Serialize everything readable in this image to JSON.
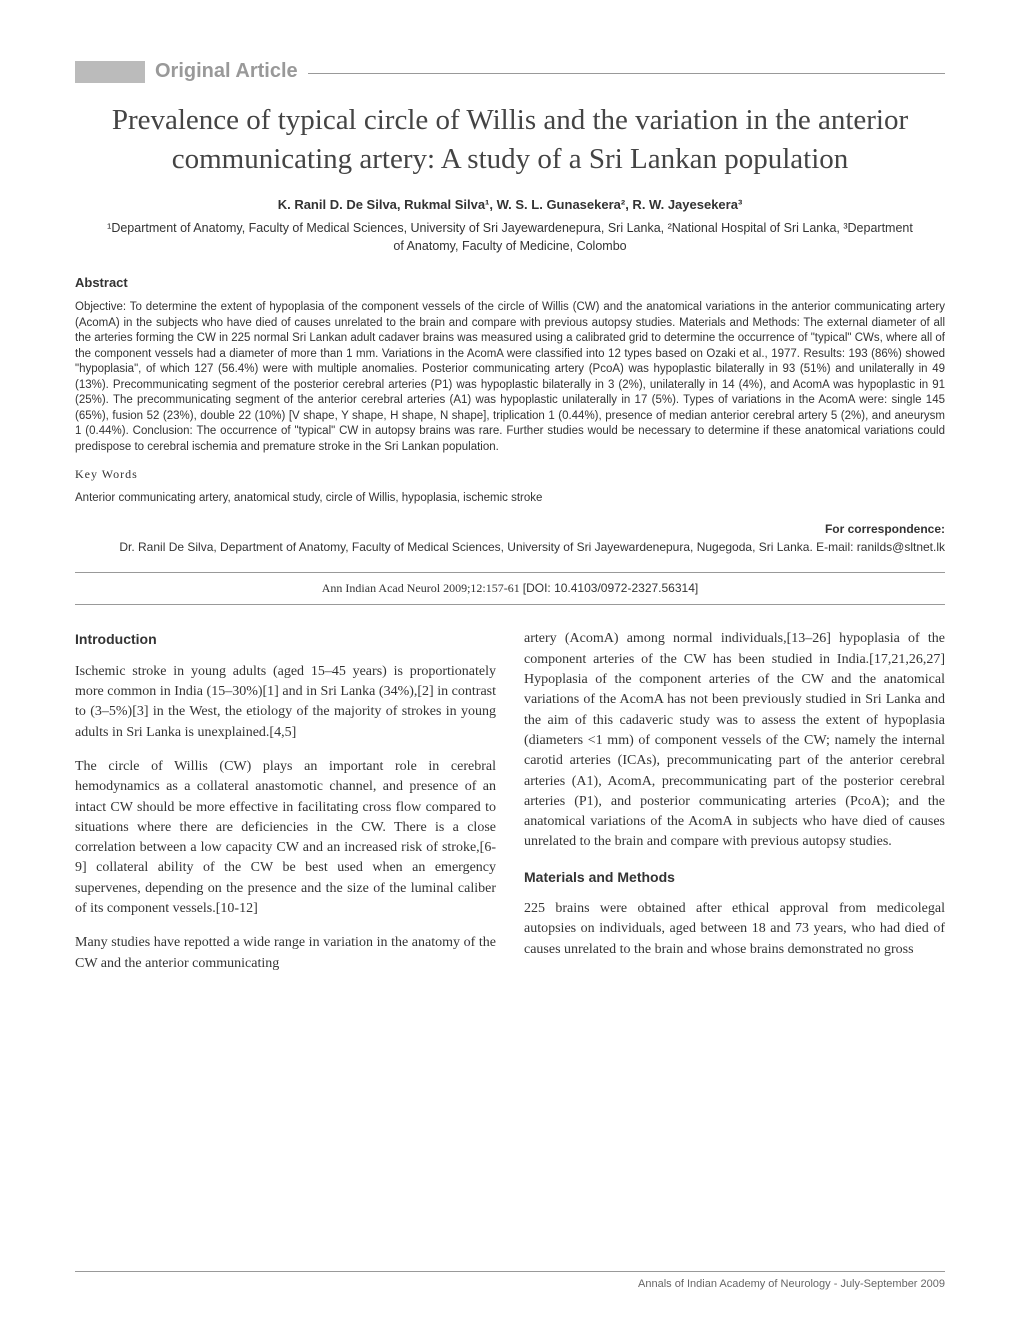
{
  "article_type": "Original Article",
  "title": "Prevalence of typical circle of Willis and the variation in the anterior communicating artery: A study of a Sri Lankan population",
  "authors": "K. Ranil D. De Silva, Rukmal Silva¹, W. S. L. Gunasekera², R. W. Jayesekera³",
  "affiliations": "¹Department of Anatomy, Faculty of Medical Sciences, University of Sri Jayewardenepura, Sri Lanka, ²National Hospital of Sri Lanka, ³Department of Anatomy, Faculty of Medicine, Colombo",
  "abstract_heading": "Abstract",
  "abstract_text": "Objective: To determine the extent of hypoplasia of the component vessels of the circle of Willis (CW) and the anatomical variations in the anterior communicating artery (AcomA) in the subjects who have died of causes unrelated to the brain and compare with previous autopsy studies. Materials and Methods: The external diameter of all the arteries forming the CW in 225 normal Sri Lankan adult cadaver brains was measured using a calibrated grid to determine the occurrence of \"typical\" CWs, where all of the component vessels had a diameter of more than 1 mm. Variations in the AcomA were classified into 12 types based on Ozaki et al., 1977. Results: 193 (86%) showed \"hypoplasia\", of which 127 (56.4%) were with multiple anomalies. Posterior communicating artery (PcoA) was hypoplastic bilaterally in 93 (51%) and unilaterally in 49 (13%). Precommunicating segment of the posterior cerebral arteries (P1) was hypoplastic bilaterally in 3 (2%), unilaterally in 14 (4%), and AcomA was hypoplastic in 91 (25%). The precommunicating segment of the anterior cerebral arteries (A1) was hypoplastic unilaterally in 17 (5%). Types of variations in the AcomA were: single 145 (65%), fusion 52 (23%), double 22 (10%) [V shape, Y shape, H shape, N shape], triplication 1 (0.44%), presence of median anterior cerebral artery 5 (2%), and aneurysm 1 (0.44%). Conclusion: The occurrence of \"typical\" CW in autopsy brains was rare. Further studies would be necessary to determine if these anatomical variations could predispose to cerebral ischemia and premature stroke in the Sri Lankan population.",
  "keywords_heading": "Key Words",
  "keywords_text": "Anterior communicating artery, anatomical study, circle of Willis, hypoplasia, ischemic stroke",
  "correspondence_label": "For correspondence:",
  "correspondence_text": "Dr. Ranil De Silva, Department of Anatomy, Faculty of Medical Sciences, University of Sri Jayewardenepura, Nugegoda, Sri Lanka. E-mail: ranilds@sltnet.lk",
  "citation_text": "Ann Indian Acad Neurol 2009;12:157-61",
  "doi": "[DOI: 10.4103/0972-2327.56314]",
  "intro_heading": "Introduction",
  "intro_p1": "Ischemic stroke in young adults (aged 15–45 years) is proportionately more common in India (15–30%)[1] and in Sri Lanka (34%),[2] in contrast to (3–5%)[3] in the West, the etiology of the majority of strokes in young adults in Sri Lanka is unexplained.[4,5]",
  "intro_p2": "The circle of Willis (CW) plays an important role in cerebral hemodynamics as a collateral anastomotic channel, and presence of an intact CW should be more effective in facilitating cross flow compared to situations where there are deficiencies in the CW. There is a close correlation between a low capacity CW and an increased risk of stroke,[6-9] collateral ability of the CW be best used when an emergency supervenes, depending on the presence and the size of the luminal caliber of its component vessels.[10-12]",
  "intro_p3": "Many studies have repotted a wide range in variation in the anatomy of the CW and the anterior communicating",
  "col2_p1": "artery (AcomA) among normal individuals,[13–26] hypoplasia of the component arteries of the CW has been studied in India.[17,21,26,27] Hypoplasia of the component arteries of the CW and the anatomical variations of the AcomA has not been previously studied in Sri Lanka and the aim of this cadaveric study was to assess the extent of hypoplasia (diameters <1 mm) of component vessels of the CW; namely the internal carotid arteries (ICAs), precommunicating part of the anterior cerebral arteries (A1), AcomA, precommunicating part of the posterior cerebral arteries (P1), and posterior communicating arteries (PcoA); and the anatomical variations of the AcomA in subjects who have died of causes unrelated to the brain and compare with previous autopsy studies.",
  "methods_heading": "Materials and Methods",
  "methods_p1": "225 brains were obtained after ethical approval from medicolegal autopsies on individuals, aged between 18 and 73 years, who had died of causes unrelated to the brain and whose brains demonstrated no gross",
  "footer_text": "Annals of Indian Academy of Neurology - July-September 2009",
  "colors": {
    "grey_bar": "#bbbbbb",
    "grey_text": "#999999",
    "body_text": "#333333",
    "footer_text": "#666666",
    "background": "#ffffff"
  },
  "typography": {
    "title_fontsize": 29,
    "authors_fontsize": 13,
    "affiliations_fontsize": 12.5,
    "abstract_fontsize": 11.5,
    "body_fontsize": 14,
    "footer_fontsize": 11
  }
}
